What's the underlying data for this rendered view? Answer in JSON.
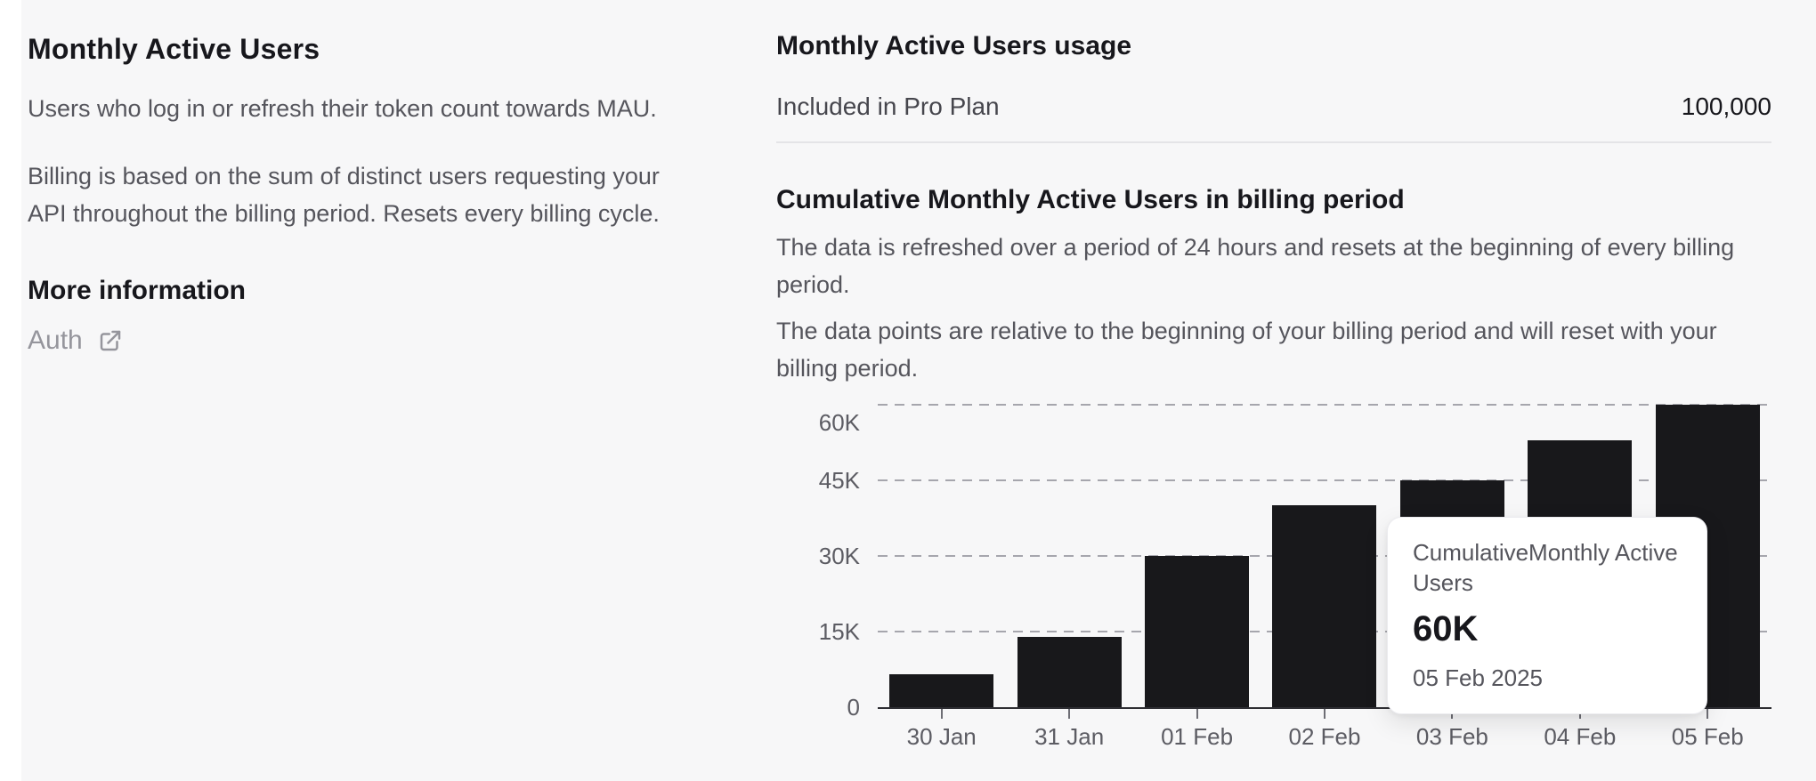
{
  "page": {
    "background": "#f7f7f8",
    "colors": {
      "heading_text": "#17171c",
      "body_text": "#55555c",
      "muted_link": "#95959c",
      "divider": "#e4e4e7",
      "axis": "#2e2e33",
      "gridline": "#a6a6ad"
    }
  },
  "left_panel": {
    "title": "Monthly Active Users",
    "description_1": "Users who log in or refresh their token count towards MAU.",
    "description_2": "Billing is based on the sum of distinct users requesting your API throughout the billing period. Resets every billing cycle.",
    "more_info_title": "More information",
    "auth_link": {
      "label": "Auth",
      "icon": "external-link-icon"
    }
  },
  "usage_panel": {
    "title": "Monthly Active Users usage",
    "row": {
      "label": "Included in Pro Plan",
      "value": "100,000"
    }
  },
  "chart_section": {
    "title": "Cumulative Monthly Active Users in billing period",
    "description_1": "The data is refreshed over a period of 24 hours and resets at the beginning of every billing period.",
    "description_2": "The data points are relative to the beginning of your billing period and will reset with your billing period."
  },
  "chart_data": {
    "type": "bar",
    "title": "Cumulative Monthly Active Users in billing period",
    "series_name": "CumulativeMonthly Active Users",
    "categories": [
      "30 Jan",
      "31 Jan",
      "01 Feb",
      "02 Feb",
      "03 Feb",
      "04 Feb",
      "05 Feb"
    ],
    "values": [
      6500,
      14000,
      30000,
      40000,
      45000,
      53000,
      60000
    ],
    "xlabel": "",
    "ylabel": "",
    "ylim": [
      0,
      60000
    ],
    "yticks": [
      {
        "label": "0",
        "value": 0
      },
      {
        "label": "15K",
        "value": 15000
      },
      {
        "label": "30K",
        "value": 30000
      },
      {
        "label": "45K",
        "value": 45000
      },
      {
        "label": "60K",
        "value": 60000
      }
    ],
    "grid": "horizontal-dashed",
    "legend": "none",
    "bar_color": "#18181b",
    "tooltip": {
      "series": "CumulativeMonthly Active Users",
      "value": "60K",
      "date": "05 Feb 2025",
      "category": "05 Feb"
    }
  }
}
